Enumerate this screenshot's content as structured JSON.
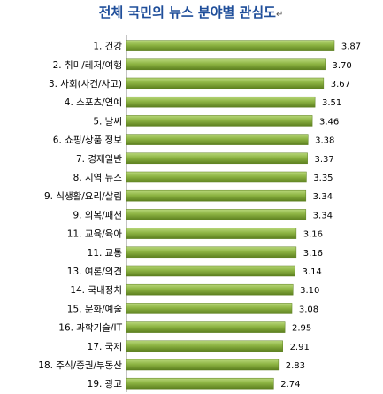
{
  "chart_data": {
    "type": "bar",
    "orientation": "horizontal",
    "title": "전체 국민의 뉴스 분야별 관심도",
    "title_mark": "↵",
    "categories": [
      "1. 건강",
      "2. 취미/레저/여행",
      "3. 사회(사건/사고)",
      "4. 스포츠/연예",
      "5. 날씨",
      "6. 쇼핑/상품 정보",
      "7. 경제일반",
      "8. 지역 뉴스",
      "9. 식생활/요리/살림",
      "9. 의복/패션",
      "11. 교육/육아",
      "11. 교통",
      "13. 여론/의견",
      "14. 국내정치",
      "15. 문화/예술",
      "16. 과학기술/IT",
      "17. 국제",
      "18. 주식/증권/부동산",
      "19. 광고"
    ],
    "values": [
      3.87,
      3.7,
      3.67,
      3.51,
      3.46,
      3.38,
      3.37,
      3.35,
      3.34,
      3.34,
      3.16,
      3.16,
      3.14,
      3.1,
      3.08,
      2.95,
      2.91,
      2.83,
      2.74
    ],
    "value_labels": [
      "3.87",
      "3.70",
      "3.67",
      "3.51",
      "3.46",
      "3.38",
      "3.37",
      "3.35",
      "3.34",
      "3.34",
      "3.16",
      "3.16",
      "3.14",
      "3.10",
      "3.08",
      "2.95",
      "2.91",
      "2.83",
      "2.74"
    ],
    "xlim": [
      0,
      4.1
    ],
    "grid": false,
    "legend": "none",
    "colors": {
      "title": "#1f4e9a",
      "bar_light": "#b8d77a",
      "bar_mid": "#8db443",
      "bar_dark": "#5c7f1f",
      "axis": "#888888"
    }
  }
}
